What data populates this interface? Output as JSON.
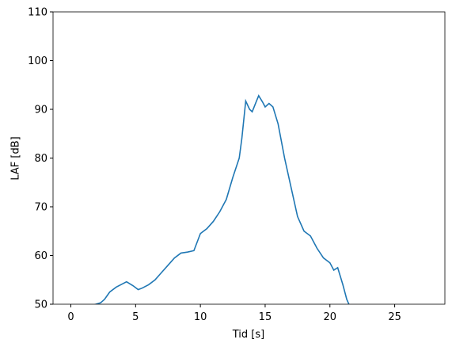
{
  "chart_data": {
    "type": "line",
    "xlabel": "Tid [s]",
    "ylabel": "LAF [dB]",
    "xlim": [
      -1.375,
      28.875
    ],
    "ylim": [
      50,
      110
    ],
    "xticks": [
      0,
      5,
      10,
      15,
      20,
      25
    ],
    "yticks": [
      50,
      60,
      70,
      80,
      90,
      100,
      110
    ],
    "series": [
      {
        "color": "#1f77b4",
        "x": [
          1.7,
          2.3,
          2.6,
          3,
          3.5,
          4,
          4.3,
          4.8,
          5.2,
          5.5,
          6,
          6.5,
          7,
          7.5,
          8,
          8.5,
          9,
          9.5,
          10,
          10.5,
          11,
          11.5,
          12,
          12.5,
          13,
          13.2,
          13.5,
          13.8,
          14,
          14.3,
          14.5,
          14.8,
          15,
          15.3,
          15.6,
          16,
          16.5,
          17,
          17.5,
          18,
          18.5,
          19,
          19.5,
          20,
          20.3,
          20.6,
          21,
          21.3,
          21.5
        ],
        "values": [
          49.8,
          50.3,
          51,
          52.5,
          53.5,
          54.2,
          54.6,
          53.8,
          53,
          53.3,
          54,
          55,
          56.5,
          58,
          59.5,
          60.5,
          60.7,
          61,
          64.5,
          65.5,
          67,
          69,
          71.5,
          76,
          80,
          84,
          91.7,
          90,
          89.5,
          91.5,
          92.8,
          91.5,
          90.5,
          91.2,
          90.5,
          87,
          80,
          74,
          68,
          65,
          64,
          61.5,
          59.5,
          58.5,
          57,
          57.5,
          54,
          51,
          49.8
        ]
      }
    ]
  }
}
